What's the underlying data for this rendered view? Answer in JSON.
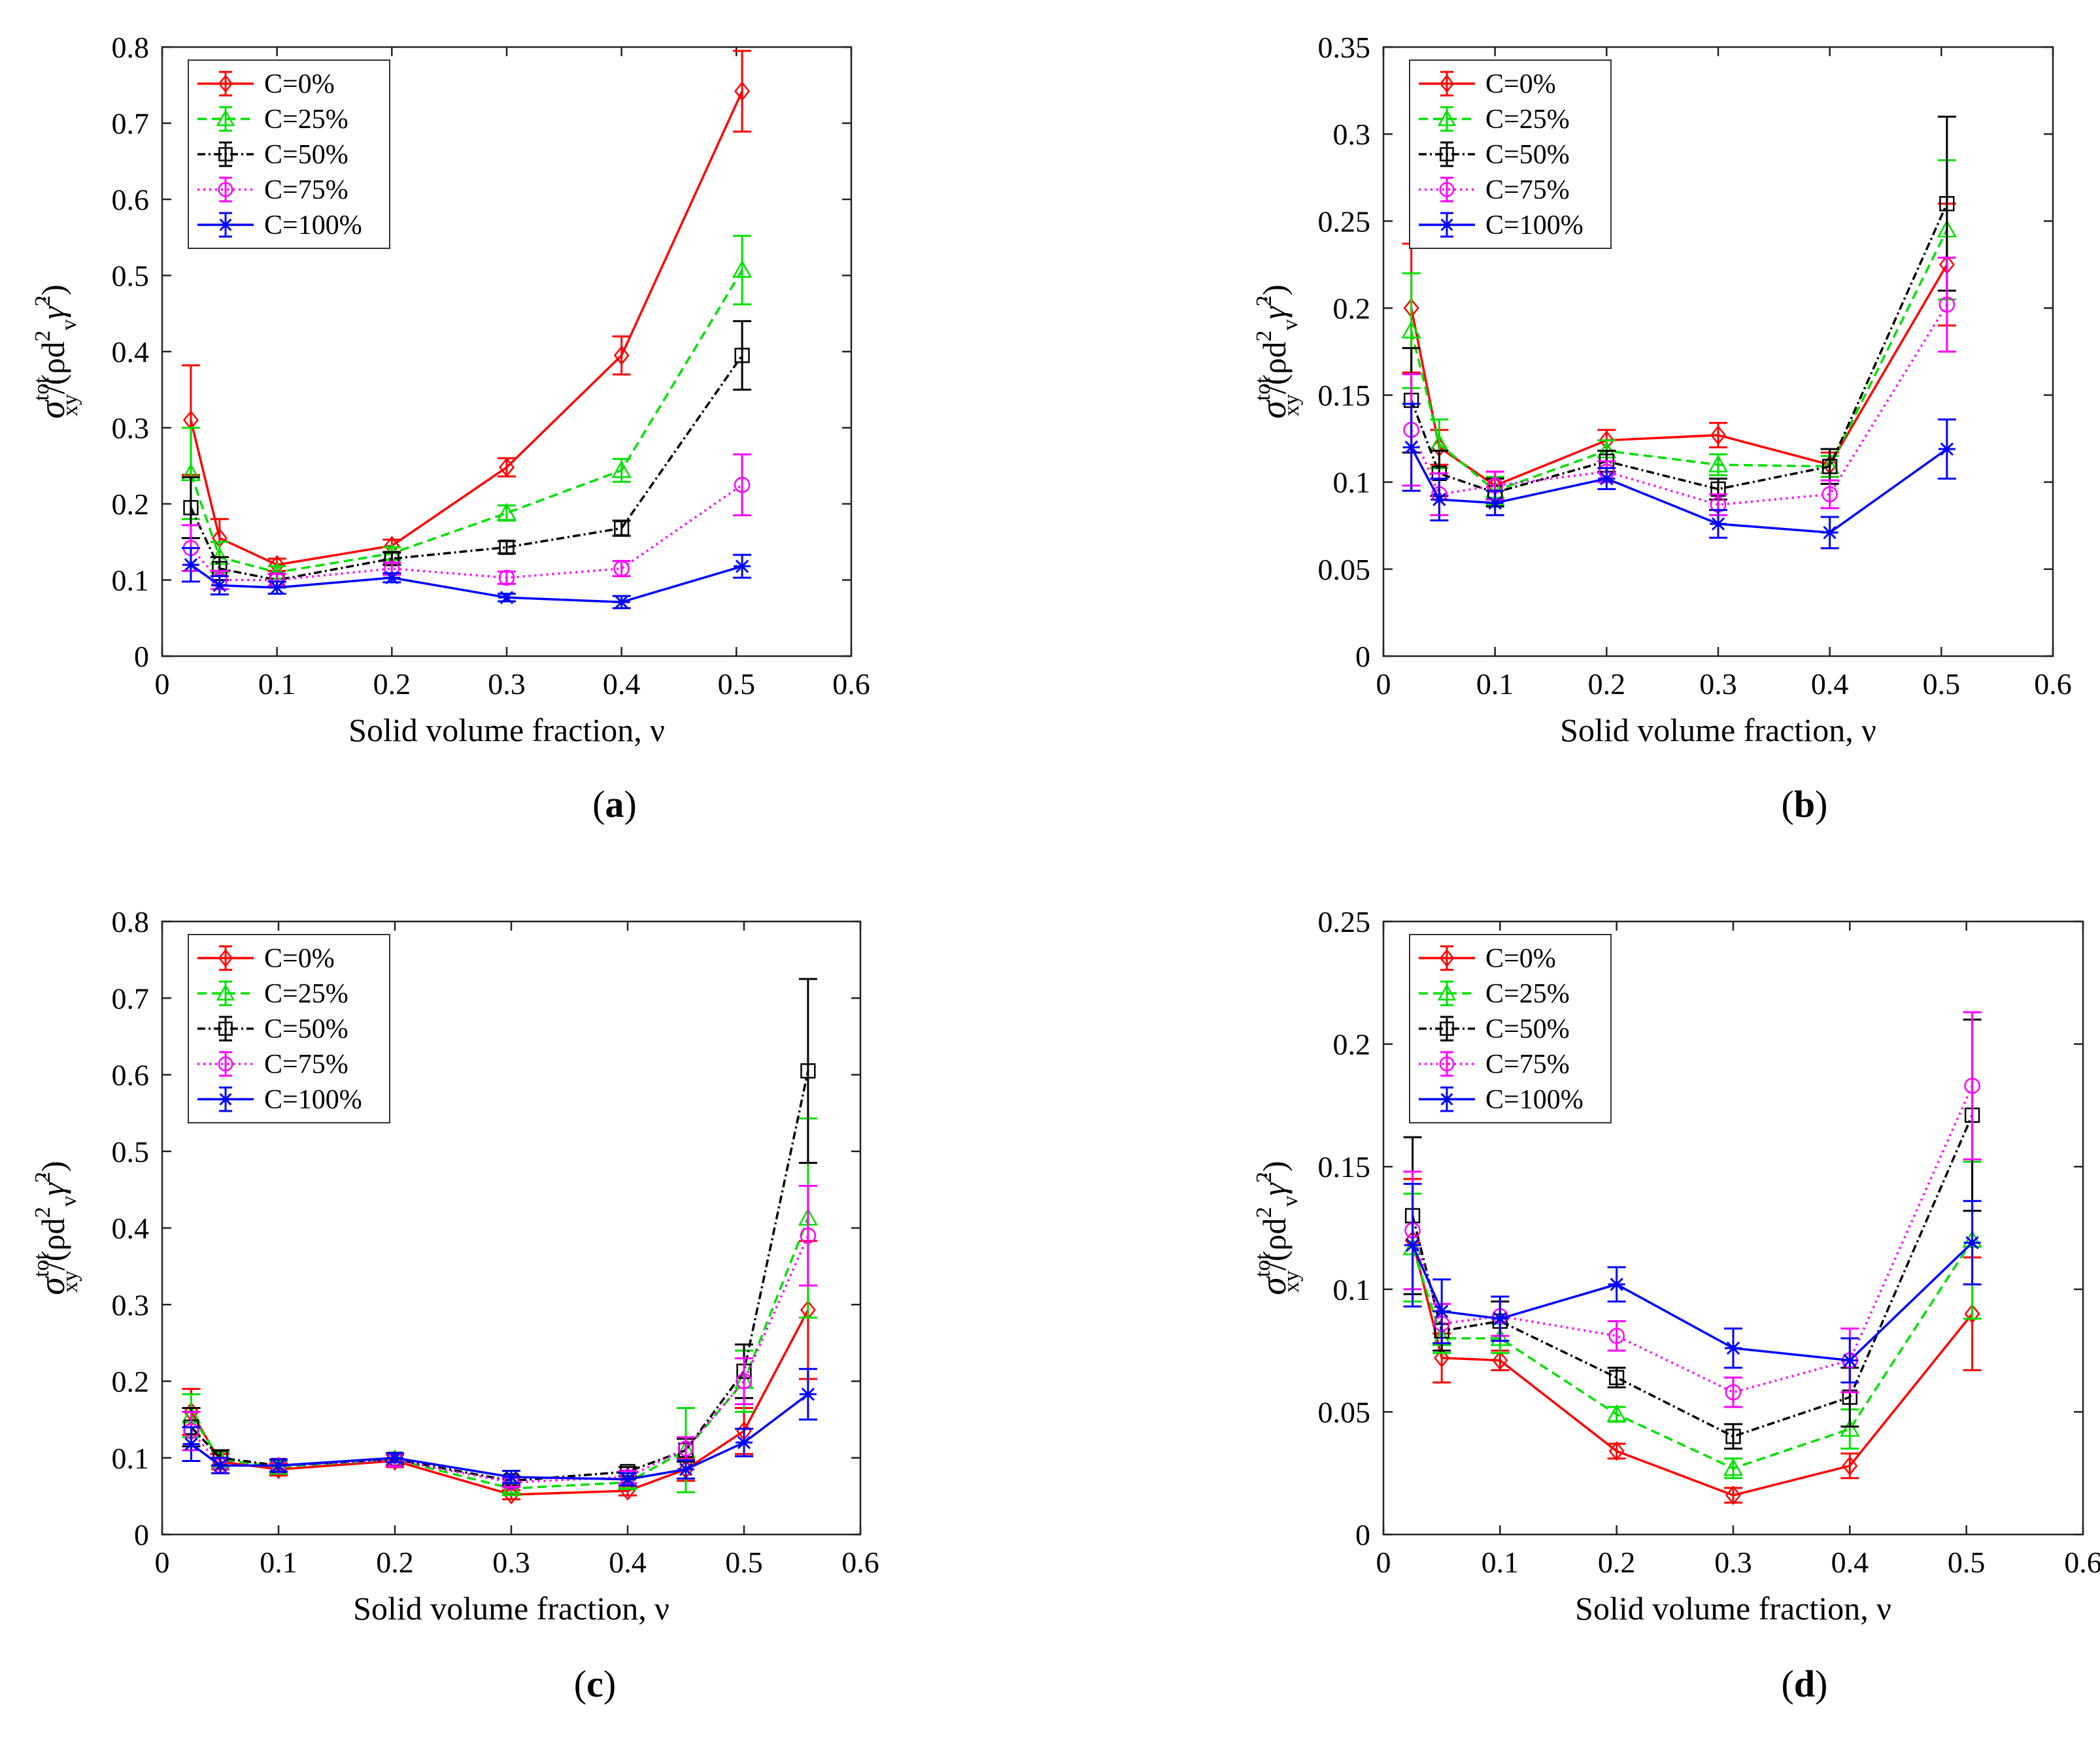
{
  "panel_labels": [
    "(a)",
    "(b)",
    "(c)",
    "(d)"
  ],
  "chart_data": [
    {
      "type": "line",
      "panel": "(a)",
      "title": "",
      "xlabel": "Solid volume fraction, ν",
      "ylabel": "σxy^tot/(ρd_v^2 γ̇^2)",
      "ylabel_main": "σ",
      "ylabel_sup": "tot",
      "ylabel_sub": "xy",
      "ylabel_rest": "/(ρd",
      "ylabel_rest_sup": "2",
      "ylabel_rest_sub": "v",
      "ylabel_tail": "γ̇",
      "ylabel_tail_sup": "2",
      "ylabel_close": ")",
      "xlim": [
        0,
        0.6
      ],
      "ylim": [
        0,
        0.8
      ],
      "xticks": [
        0,
        0.1,
        0.2,
        0.3,
        0.4,
        0.5,
        0.6
      ],
      "xtick_labels": [
        "0",
        "0.1",
        "0.2",
        "0.3",
        "0.4",
        "0.5",
        "0.6"
      ],
      "yticks": [
        0,
        0.1,
        0.2,
        0.3,
        0.4,
        0.5,
        0.6,
        0.7,
        0.8
      ],
      "ytick_labels": [
        "0",
        "0.1",
        "0.2",
        "0.3",
        "0.4",
        "0.5",
        "0.6",
        "0.7",
        "0.8"
      ],
      "legend_position": "top-left",
      "series": [
        {
          "name": "C=0%",
          "color": "#ff0000",
          "dash": "",
          "marker": "diamond",
          "x": [
            0.025,
            0.05,
            0.1,
            0.2,
            0.3,
            0.4,
            0.505
          ],
          "y": [
            0.31,
            0.155,
            0.12,
            0.145,
            0.248,
            0.395,
            0.742
          ],
          "err": [
            0.072,
            0.025,
            0.008,
            0.008,
            0.012,
            0.025,
            0.053
          ]
        },
        {
          "name": "C=25%",
          "color": "#00e000",
          "dash": "14,8",
          "marker": "triangle",
          "x": [
            0.025,
            0.05,
            0.1,
            0.2,
            0.3,
            0.4,
            0.505
          ],
          "y": [
            0.24,
            0.13,
            0.11,
            0.135,
            0.188,
            0.244,
            0.507
          ],
          "err": [
            0.06,
            0.02,
            0.008,
            0.008,
            0.01,
            0.015,
            0.045
          ]
        },
        {
          "name": "C=50%",
          "color": "#000000",
          "dash": "12,5,3,5",
          "marker": "square",
          "x": [
            0.025,
            0.05,
            0.1,
            0.2,
            0.3,
            0.4,
            0.505
          ],
          "y": [
            0.195,
            0.115,
            0.1,
            0.128,
            0.143,
            0.168,
            0.395
          ],
          "err": [
            0.04,
            0.015,
            0.008,
            0.008,
            0.008,
            0.01,
            0.045
          ]
        },
        {
          "name": "C=75%",
          "color": "#ff00ff",
          "dash": "3,6",
          "marker": "circle",
          "x": [
            0.025,
            0.05,
            0.1,
            0.2,
            0.3,
            0.4,
            0.505
          ],
          "y": [
            0.142,
            0.1,
            0.1,
            0.115,
            0.103,
            0.115,
            0.225
          ],
          "err": [
            0.03,
            0.012,
            0.008,
            0.008,
            0.008,
            0.01,
            0.04
          ]
        },
        {
          "name": "C=100%",
          "color": "#0000ff",
          "dash": "",
          "marker": "star",
          "x": [
            0.025,
            0.05,
            0.1,
            0.2,
            0.3,
            0.4,
            0.505
          ],
          "y": [
            0.12,
            0.093,
            0.09,
            0.103,
            0.077,
            0.071,
            0.118
          ],
          "err": [
            0.022,
            0.012,
            0.008,
            0.006,
            0.005,
            0.008,
            0.015
          ]
        }
      ]
    },
    {
      "type": "line",
      "panel": "(b)",
      "title": "",
      "xlabel": "Solid volume fraction, ν",
      "ylabel": "σxy^tot/(ρd_v^2 γ̇^2)",
      "ylabel_main": "σ",
      "ylabel_sup": "tot",
      "ylabel_sub": "xy",
      "ylabel_rest": "/(ρd",
      "ylabel_rest_sup": "2",
      "ylabel_rest_sub": "v",
      "ylabel_tail": "γ̇",
      "ylabel_tail_sup": "2",
      "ylabel_close": ")",
      "xlim": [
        0,
        0.6
      ],
      "ylim": [
        0,
        0.35
      ],
      "xticks": [
        0,
        0.1,
        0.2,
        0.3,
        0.4,
        0.5,
        0.6
      ],
      "xtick_labels": [
        "0",
        "0.1",
        "0.2",
        "0.3",
        "0.4",
        "0.5",
        "0.6"
      ],
      "yticks": [
        0,
        0.05,
        0.1,
        0.15,
        0.2,
        0.25,
        0.3,
        0.35
      ],
      "ytick_labels": [
        "0",
        "0.05",
        "0.1",
        "0.15",
        "0.2",
        "0.25",
        "0.3",
        "0.35"
      ],
      "legend_position": "top-left",
      "series": [
        {
          "name": "C=0%",
          "color": "#ff0000",
          "dash": "",
          "marker": "diamond",
          "x": [
            0.025,
            0.05,
            0.1,
            0.2,
            0.3,
            0.4,
            0.505
          ],
          "y": [
            0.2,
            0.12,
            0.098,
            0.124,
            0.127,
            0.11,
            0.225
          ],
          "err": [
            0.037,
            0.01,
            0.008,
            0.006,
            0.007,
            0.007,
            0.035
          ]
        },
        {
          "name": "C=25%",
          "color": "#00e000",
          "dash": "14,8",
          "marker": "triangle",
          "x": [
            0.025,
            0.05,
            0.1,
            0.2,
            0.3,
            0.4,
            0.505
          ],
          "y": [
            0.187,
            0.122,
            0.095,
            0.118,
            0.11,
            0.109,
            0.245
          ],
          "err": [
            0.033,
            0.014,
            0.008,
            0.006,
            0.006,
            0.006,
            0.04
          ]
        },
        {
          "name": "C=50%",
          "color": "#000000",
          "dash": "12,5,3,5",
          "marker": "square",
          "x": [
            0.025,
            0.05,
            0.1,
            0.2,
            0.3,
            0.4,
            0.505
          ],
          "y": [
            0.147,
            0.105,
            0.094,
            0.112,
            0.096,
            0.109,
            0.26
          ],
          "err": [
            0.03,
            0.013,
            0.008,
            0.006,
            0.006,
            0.01,
            0.05
          ]
        },
        {
          "name": "C=75%",
          "color": "#ff00ff",
          "dash": "3,6",
          "marker": "circle",
          "x": [
            0.025,
            0.05,
            0.1,
            0.2,
            0.3,
            0.4,
            0.505
          ],
          "y": [
            0.13,
            0.093,
            0.098,
            0.106,
            0.087,
            0.093,
            0.202
          ],
          "err": [
            0.032,
            0.012,
            0.008,
            0.006,
            0.006,
            0.008,
            0.027
          ]
        },
        {
          "name": "C=100%",
          "color": "#0000ff",
          "dash": "",
          "marker": "star",
          "x": [
            0.025,
            0.05,
            0.1,
            0.2,
            0.3,
            0.4,
            0.505
          ],
          "y": [
            0.12,
            0.09,
            0.088,
            0.102,
            0.076,
            0.071,
            0.119
          ],
          "err": [
            0.025,
            0.012,
            0.007,
            0.006,
            0.008,
            0.009,
            0.017
          ]
        }
      ]
    },
    {
      "type": "line",
      "panel": "(c)",
      "title": "",
      "xlabel": "Solid volume fraction, ν",
      "ylabel": "σxy^tot/(ρd_v^2 γ̇^2)",
      "ylabel_main": "σ",
      "ylabel_sup": "tot",
      "ylabel_sub": "xy",
      "ylabel_rest": "/(ρd",
      "ylabel_rest_sup": "2",
      "ylabel_rest_sub": "v",
      "ylabel_tail": "γ̇",
      "ylabel_tail_sup": "2",
      "ylabel_close": ")",
      "xlim": [
        0,
        0.6
      ],
      "ylim": [
        0,
        0.8
      ],
      "xticks": [
        0,
        0.1,
        0.2,
        0.3,
        0.4,
        0.5,
        0.6
      ],
      "xtick_labels": [
        "0",
        "0.1",
        "0.2",
        "0.3",
        "0.4",
        "0.5",
        "0.6"
      ],
      "yticks": [
        0,
        0.1,
        0.2,
        0.3,
        0.4,
        0.5,
        0.6,
        0.7,
        0.8
      ],
      "ytick_labels": [
        "0",
        "0.1",
        "0.2",
        "0.3",
        "0.4",
        "0.5",
        "0.6",
        "0.7",
        "0.8"
      ],
      "legend_position": "top-left",
      "series": [
        {
          "name": "C=0%",
          "color": "#ff0000",
          "dash": "",
          "marker": "diamond",
          "x": [
            0.025,
            0.05,
            0.1,
            0.2,
            0.3,
            0.4,
            0.45,
            0.5,
            0.555
          ],
          "y": [
            0.16,
            0.095,
            0.085,
            0.096,
            0.052,
            0.057,
            0.085,
            0.135,
            0.293
          ],
          "err": [
            0.03,
            0.01,
            0.008,
            0.008,
            0.006,
            0.006,
            0.015,
            0.03,
            0.09
          ]
        },
        {
          "name": "C=25%",
          "color": "#00e000",
          "dash": "14,8",
          "marker": "triangle",
          "x": [
            0.025,
            0.05,
            0.1,
            0.2,
            0.3,
            0.4,
            0.45,
            0.5,
            0.555
          ],
          "y": [
            0.155,
            0.098,
            0.088,
            0.098,
            0.06,
            0.068,
            0.11,
            0.2,
            0.413
          ],
          "err": [
            0.028,
            0.01,
            0.008,
            0.008,
            0.006,
            0.008,
            0.055,
            0.04,
            0.13
          ]
        },
        {
          "name": "C=50%",
          "color": "#000000",
          "dash": "12,5,3,5",
          "marker": "square",
          "x": [
            0.025,
            0.05,
            0.1,
            0.2,
            0.3,
            0.4,
            0.45,
            0.5,
            0.555
          ],
          "y": [
            0.14,
            0.1,
            0.09,
            0.098,
            0.07,
            0.082,
            0.11,
            0.213,
            0.605
          ],
          "err": [
            0.025,
            0.01,
            0.008,
            0.008,
            0.006,
            0.006,
            0.015,
            0.035,
            0.12
          ]
        },
        {
          "name": "C=75%",
          "color": "#ff00ff",
          "dash": "3,6",
          "marker": "circle",
          "x": [
            0.025,
            0.05,
            0.1,
            0.2,
            0.3,
            0.4,
            0.45,
            0.5,
            0.555
          ],
          "y": [
            0.135,
            0.09,
            0.09,
            0.097,
            0.068,
            0.075,
            0.112,
            0.2,
            0.39
          ],
          "err": [
            0.025,
            0.01,
            0.008,
            0.008,
            0.006,
            0.008,
            0.015,
            0.03,
            0.065
          ]
        },
        {
          "name": "C=100%",
          "color": "#0000ff",
          "dash": "",
          "marker": "star",
          "x": [
            0.025,
            0.05,
            0.1,
            0.2,
            0.3,
            0.4,
            0.45,
            0.5,
            0.555
          ],
          "y": [
            0.118,
            0.09,
            0.09,
            0.1,
            0.075,
            0.072,
            0.085,
            0.12,
            0.183
          ],
          "err": [
            0.022,
            0.01,
            0.008,
            0.006,
            0.008,
            0.008,
            0.012,
            0.018,
            0.033
          ]
        }
      ]
    },
    {
      "type": "line",
      "panel": "(d)",
      "title": "",
      "xlabel": "Solid volume fraction, ν",
      "ylabel": "σxy^tot/(ρd_v^2 γ̇^2)",
      "ylabel_main": "σ",
      "ylabel_sup": "tot",
      "ylabel_sub": "xy",
      "ylabel_rest": "/(ρd",
      "ylabel_rest_sup": "2",
      "ylabel_rest_sub": "v",
      "ylabel_tail": "γ̇",
      "ylabel_tail_sup": "2",
      "ylabel_close": ")",
      "xlim": [
        0,
        0.6
      ],
      "ylim": [
        0,
        0.25
      ],
      "xticks": [
        0,
        0.1,
        0.2,
        0.3,
        0.4,
        0.5,
        0.6
      ],
      "xtick_labels": [
        "0",
        "0.1",
        "0.2",
        "0.3",
        "0.4",
        "0.5",
        "0.6"
      ],
      "yticks": [
        0,
        0.05,
        0.1,
        0.15,
        0.2,
        0.25
      ],
      "ytick_labels": [
        "0",
        "0.05",
        "0.1",
        "0.15",
        "0.2",
        "0.25"
      ],
      "legend_position": "top-left",
      "series": [
        {
          "name": "C=0%",
          "color": "#ff0000",
          "dash": "",
          "marker": "diamond",
          "x": [
            0.025,
            0.05,
            0.1,
            0.2,
            0.3,
            0.4,
            0.505
          ],
          "y": [
            0.12,
            0.072,
            0.071,
            0.034,
            0.016,
            0.028,
            0.09
          ],
          "err": [
            0.025,
            0.01,
            0.004,
            0.003,
            0.003,
            0.005,
            0.023
          ]
        },
        {
          "name": "C=25%",
          "color": "#00e000",
          "dash": "14,8",
          "marker": "triangle",
          "x": [
            0.025,
            0.05,
            0.1,
            0.2,
            0.3,
            0.4,
            0.505
          ],
          "y": [
            0.117,
            0.08,
            0.08,
            0.049,
            0.027,
            0.043,
            0.12
          ],
          "err": [
            0.022,
            0.006,
            0.006,
            0.003,
            0.004,
            0.008,
            0.032
          ]
        },
        {
          "name": "C=50%",
          "color": "#000000",
          "dash": "12,5,3,5",
          "marker": "square",
          "x": [
            0.025,
            0.05,
            0.1,
            0.2,
            0.3,
            0.4,
            0.505
          ],
          "y": [
            0.13,
            0.083,
            0.087,
            0.064,
            0.04,
            0.056,
            0.171
          ],
          "err": [
            0.032,
            0.008,
            0.008,
            0.004,
            0.005,
            0.012,
            0.039
          ]
        },
        {
          "name": "C=75%",
          "color": "#ff00ff",
          "dash": "3,6",
          "marker": "circle",
          "x": [
            0.025,
            0.05,
            0.1,
            0.2,
            0.3,
            0.4,
            0.505
          ],
          "y": [
            0.124,
            0.086,
            0.089,
            0.081,
            0.058,
            0.071,
            0.183
          ],
          "err": [
            0.024,
            0.008,
            0.008,
            0.006,
            0.006,
            0.013,
            0.03
          ]
        },
        {
          "name": "C=100%",
          "color": "#0000ff",
          "dash": "",
          "marker": "star",
          "x": [
            0.025,
            0.05,
            0.1,
            0.2,
            0.3,
            0.4,
            0.505
          ],
          "y": [
            0.118,
            0.091,
            0.088,
            0.102,
            0.076,
            0.071,
            0.119
          ],
          "err": [
            0.025,
            0.013,
            0.009,
            0.007,
            0.008,
            0.009,
            0.017
          ]
        }
      ]
    }
  ]
}
